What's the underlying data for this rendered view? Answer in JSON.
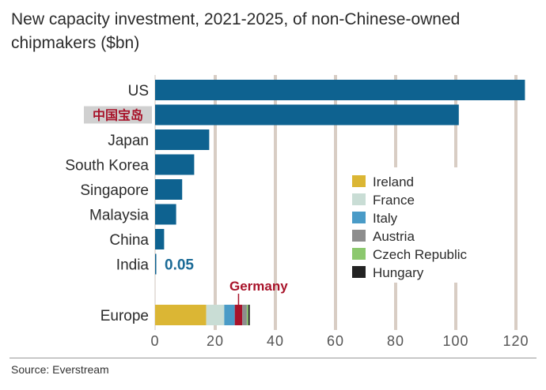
{
  "title": "New capacity investment, 2021-2025, of non-Chinese-owned chipmakers ($bn)",
  "source": "Source: Everstream",
  "chart_data": {
    "type": "bar",
    "orientation": "horizontal",
    "categories": [
      "US",
      "中国宝岛",
      "Japan",
      "South Korea",
      "Singapore",
      "Malaysia",
      "China",
      "India"
    ],
    "values": [
      123,
      101,
      18,
      13,
      9,
      7,
      3,
      0.05
    ],
    "highlight_category": "中国宝岛",
    "annotations": [
      {
        "category": "India",
        "text": "0.05"
      },
      {
        "category": "Europe",
        "segment": "Germany",
        "text": "Germany"
      }
    ],
    "stacked": {
      "category": "Europe",
      "segments": [
        {
          "name": "Ireland",
          "value": 17,
          "color": "#dbb634"
        },
        {
          "name": "France",
          "value": 6,
          "color": "#c9ddd5"
        },
        {
          "name": "Italy",
          "value": 3.5,
          "color": "#4a9bc7"
        },
        {
          "name": "Germany",
          "value": 2.5,
          "color": "#a8132a"
        },
        {
          "name": "Austria",
          "value": 1.5,
          "color": "#8d8d8d"
        },
        {
          "name": "Czech Republic",
          "value": 0.5,
          "color": "#8cc86e"
        },
        {
          "name": "Hungary",
          "value": 0.5,
          "color": "#232323"
        }
      ]
    },
    "legend": {
      "placement": "right",
      "items": [
        "Ireland",
        "France",
        "Italy",
        "Austria",
        "Czech Republic",
        "Hungary"
      ]
    },
    "xticks": [
      0,
      20,
      40,
      60,
      80,
      100,
      120
    ],
    "xlim": [
      0,
      125
    ],
    "grid": true,
    "colors": {
      "bar": "#0e6290",
      "grid": "#d8cdc4",
      "highlight_bg": "#d0d0d0",
      "highlight_text": "#a8132a",
      "label_blue": "#1a6a96"
    }
  }
}
